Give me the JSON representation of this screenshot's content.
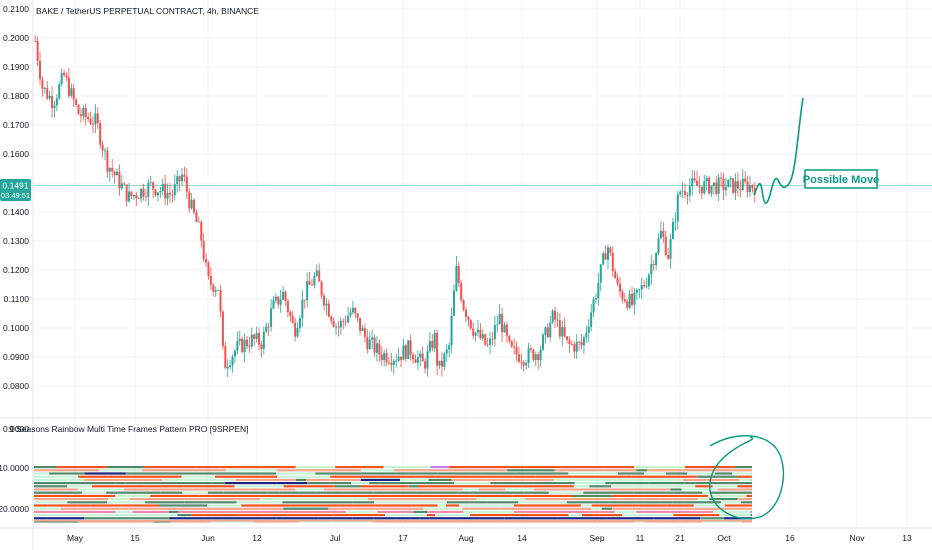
{
  "header": {
    "title": "BAKE / TetherUS PERPETUAL CONTRACT, 4h, BINANCE"
  },
  "price_label": {
    "value": "0.1491",
    "countdown": "03:49:51"
  },
  "annotation": {
    "text": "Possible Move"
  },
  "indicator": {
    "title": "9 Seasons Rainbow Multi Time Frames Pattern PRO [9SRPEN]",
    "axis_ticks": [
      "0.0000",
      "−10.0000",
      "−20.0000"
    ]
  },
  "colors": {
    "up": "#26a69a",
    "down": "#ef5350",
    "annotation": "#089981",
    "price_line": "#26a69a",
    "band_red": "#f4511e",
    "band_salmon": "#f8a58d",
    "band_green": "#4f8b6b",
    "band_mint": "#c6f2d8",
    "band_navy": "#1a237e",
    "band_pink": "#f08aa8",
    "band_violet": "#c77dff"
  },
  "chart_data": {
    "type": "candlestick",
    "title": "BAKE / TetherUS PERPETUAL CONTRACT, 4h, BINANCE",
    "y_ticks": [
      "0.2100",
      "0.2000",
      "0.1900",
      "0.1800",
      "0.1700",
      "0.1600",
      "0.1500",
      "0.1400",
      "0.1300",
      "0.1200",
      "0.1100",
      "0.1000",
      "0.0900",
      "0.0800"
    ],
    "ylim": [
      0.0745,
      0.2115
    ],
    "x_ticks": [
      "May",
      "15",
      "Jun",
      "12",
      "Jul",
      "17",
      "Aug",
      "14",
      "Sep",
      "11",
      "21",
      "Oct",
      "16",
      "Nov",
      "13"
    ],
    "current_price": 0.1491,
    "price_path": [
      {
        "x": 0,
        "price": 0.199
      },
      {
        "x": 0.01,
        "price": 0.183
      },
      {
        "x": 0.025,
        "price": 0.178
      },
      {
        "x": 0.04,
        "price": 0.187
      },
      {
        "x": 0.06,
        "price": 0.174
      },
      {
        "x": 0.085,
        "price": 0.171
      },
      {
        "x": 0.1,
        "price": 0.157
      },
      {
        "x": 0.13,
        "price": 0.145
      },
      {
        "x": 0.16,
        "price": 0.149
      },
      {
        "x": 0.19,
        "price": 0.146
      },
      {
        "x": 0.205,
        "price": 0.153
      },
      {
        "x": 0.215,
        "price": 0.143
      },
      {
        "x": 0.23,
        "price": 0.132
      },
      {
        "x": 0.24,
        "price": 0.116
      },
      {
        "x": 0.255,
        "price": 0.114
      },
      {
        "x": 0.262,
        "price": 0.087
      },
      {
        "x": 0.28,
        "price": 0.093
      },
      {
        "x": 0.3,
        "price": 0.096
      },
      {
        "x": 0.315,
        "price": 0.095
      },
      {
        "x": 0.33,
        "price": 0.107
      },
      {
        "x": 0.345,
        "price": 0.112
      },
      {
        "x": 0.36,
        "price": 0.099
      },
      {
        "x": 0.375,
        "price": 0.112
      },
      {
        "x": 0.39,
        "price": 0.118
      },
      {
        "x": 0.405,
        "price": 0.108
      },
      {
        "x": 0.42,
        "price": 0.1
      },
      {
        "x": 0.44,
        "price": 0.106
      },
      {
        "x": 0.46,
        "price": 0.096
      },
      {
        "x": 0.48,
        "price": 0.091
      },
      {
        "x": 0.5,
        "price": 0.09
      },
      {
        "x": 0.52,
        "price": 0.093
      },
      {
        "x": 0.54,
        "price": 0.087
      },
      {
        "x": 0.555,
        "price": 0.097
      },
      {
        "x": 0.56,
        "price": 0.085
      },
      {
        "x": 0.575,
        "price": 0.093
      },
      {
        "x": 0.585,
        "price": 0.12
      },
      {
        "x": 0.595,
        "price": 0.108
      },
      {
        "x": 0.61,
        "price": 0.099
      },
      {
        "x": 0.63,
        "price": 0.093
      },
      {
        "x": 0.645,
        "price": 0.104
      },
      {
        "x": 0.66,
        "price": 0.092
      },
      {
        "x": 0.68,
        "price": 0.09
      },
      {
        "x": 0.7,
        "price": 0.092
      },
      {
        "x": 0.72,
        "price": 0.104
      },
      {
        "x": 0.74,
        "price": 0.094
      },
      {
        "x": 0.76,
        "price": 0.094
      },
      {
        "x": 0.78,
        "price": 0.113
      },
      {
        "x": 0.795,
        "price": 0.129
      },
      {
        "x": 0.81,
        "price": 0.113
      },
      {
        "x": 0.83,
        "price": 0.108
      },
      {
        "x": 0.85,
        "price": 0.117
      },
      {
        "x": 0.87,
        "price": 0.133
      },
      {
        "x": 0.88,
        "price": 0.125
      },
      {
        "x": 0.895,
        "price": 0.147
      },
      {
        "x": 0.91,
        "price": 0.149
      }
    ],
    "projection": [
      {
        "x": 0,
        "price": 0.1491
      },
      {
        "x": 1,
        "price": 0.1775
      }
    ]
  }
}
